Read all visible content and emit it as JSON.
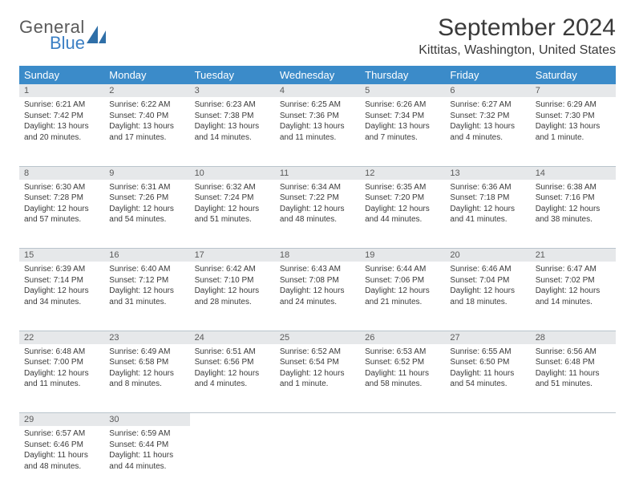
{
  "logo": {
    "general": "General",
    "blue": "Blue",
    "shape_color": "#2f6fa8"
  },
  "title": "September 2024",
  "location": "Kittitas, Washington, United States",
  "colors": {
    "header_bg": "#3b8bc9",
    "header_fg": "#ffffff",
    "daynum_bg": "#e6e8ea",
    "daynum_fg": "#5a5a5a",
    "border": "#b9c4cc",
    "text": "#3a3a3a"
  },
  "day_headers": [
    "Sunday",
    "Monday",
    "Tuesday",
    "Wednesday",
    "Thursday",
    "Friday",
    "Saturday"
  ],
  "weeks": [
    [
      {
        "n": "1",
        "sr": "6:21 AM",
        "ss": "7:42 PM",
        "dl": "13 hours and 20 minutes."
      },
      {
        "n": "2",
        "sr": "6:22 AM",
        "ss": "7:40 PM",
        "dl": "13 hours and 17 minutes."
      },
      {
        "n": "3",
        "sr": "6:23 AM",
        "ss": "7:38 PM",
        "dl": "13 hours and 14 minutes."
      },
      {
        "n": "4",
        "sr": "6:25 AM",
        "ss": "7:36 PM",
        "dl": "13 hours and 11 minutes."
      },
      {
        "n": "5",
        "sr": "6:26 AM",
        "ss": "7:34 PM",
        "dl": "13 hours and 7 minutes."
      },
      {
        "n": "6",
        "sr": "6:27 AM",
        "ss": "7:32 PM",
        "dl": "13 hours and 4 minutes."
      },
      {
        "n": "7",
        "sr": "6:29 AM",
        "ss": "7:30 PM",
        "dl": "13 hours and 1 minute."
      }
    ],
    [
      {
        "n": "8",
        "sr": "6:30 AM",
        "ss": "7:28 PM",
        "dl": "12 hours and 57 minutes."
      },
      {
        "n": "9",
        "sr": "6:31 AM",
        "ss": "7:26 PM",
        "dl": "12 hours and 54 minutes."
      },
      {
        "n": "10",
        "sr": "6:32 AM",
        "ss": "7:24 PM",
        "dl": "12 hours and 51 minutes."
      },
      {
        "n": "11",
        "sr": "6:34 AM",
        "ss": "7:22 PM",
        "dl": "12 hours and 48 minutes."
      },
      {
        "n": "12",
        "sr": "6:35 AM",
        "ss": "7:20 PM",
        "dl": "12 hours and 44 minutes."
      },
      {
        "n": "13",
        "sr": "6:36 AM",
        "ss": "7:18 PM",
        "dl": "12 hours and 41 minutes."
      },
      {
        "n": "14",
        "sr": "6:38 AM",
        "ss": "7:16 PM",
        "dl": "12 hours and 38 minutes."
      }
    ],
    [
      {
        "n": "15",
        "sr": "6:39 AM",
        "ss": "7:14 PM",
        "dl": "12 hours and 34 minutes."
      },
      {
        "n": "16",
        "sr": "6:40 AM",
        "ss": "7:12 PM",
        "dl": "12 hours and 31 minutes."
      },
      {
        "n": "17",
        "sr": "6:42 AM",
        "ss": "7:10 PM",
        "dl": "12 hours and 28 minutes."
      },
      {
        "n": "18",
        "sr": "6:43 AM",
        "ss": "7:08 PM",
        "dl": "12 hours and 24 minutes."
      },
      {
        "n": "19",
        "sr": "6:44 AM",
        "ss": "7:06 PM",
        "dl": "12 hours and 21 minutes."
      },
      {
        "n": "20",
        "sr": "6:46 AM",
        "ss": "7:04 PM",
        "dl": "12 hours and 18 minutes."
      },
      {
        "n": "21",
        "sr": "6:47 AM",
        "ss": "7:02 PM",
        "dl": "12 hours and 14 minutes."
      }
    ],
    [
      {
        "n": "22",
        "sr": "6:48 AM",
        "ss": "7:00 PM",
        "dl": "12 hours and 11 minutes."
      },
      {
        "n": "23",
        "sr": "6:49 AM",
        "ss": "6:58 PM",
        "dl": "12 hours and 8 minutes."
      },
      {
        "n": "24",
        "sr": "6:51 AM",
        "ss": "6:56 PM",
        "dl": "12 hours and 4 minutes."
      },
      {
        "n": "25",
        "sr": "6:52 AM",
        "ss": "6:54 PM",
        "dl": "12 hours and 1 minute."
      },
      {
        "n": "26",
        "sr": "6:53 AM",
        "ss": "6:52 PM",
        "dl": "11 hours and 58 minutes."
      },
      {
        "n": "27",
        "sr": "6:55 AM",
        "ss": "6:50 PM",
        "dl": "11 hours and 54 minutes."
      },
      {
        "n": "28",
        "sr": "6:56 AM",
        "ss": "6:48 PM",
        "dl": "11 hours and 51 minutes."
      }
    ],
    [
      {
        "n": "29",
        "sr": "6:57 AM",
        "ss": "6:46 PM",
        "dl": "11 hours and 48 minutes."
      },
      {
        "n": "30",
        "sr": "6:59 AM",
        "ss": "6:44 PM",
        "dl": "11 hours and 44 minutes."
      },
      null,
      null,
      null,
      null,
      null
    ]
  ],
  "labels": {
    "sunrise": "Sunrise: ",
    "sunset": "Sunset: ",
    "daylight": "Daylight: "
  }
}
